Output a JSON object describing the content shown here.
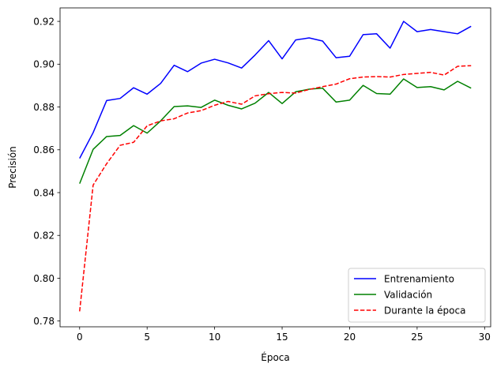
{
  "chart_data": {
    "type": "line",
    "xlabel": "Época",
    "ylabel": "Precisión",
    "xlim": [
      -1.45,
      30.45
    ],
    "ylim": [
      0.7773,
      0.9263
    ],
    "xticks": [
      0,
      5,
      10,
      15,
      20,
      25,
      30
    ],
    "yticks": [
      0.78,
      0.8,
      0.82,
      0.84,
      0.86,
      0.88,
      0.9,
      0.92
    ],
    "ytick_labels": [
      "0.78",
      "0.80",
      "0.82",
      "0.84",
      "0.86",
      "0.88",
      "0.90",
      "0.92"
    ],
    "grid": false,
    "legend_position": "lower right",
    "x": [
      0,
      1,
      2,
      3,
      4,
      5,
      6,
      7,
      8,
      9,
      10,
      11,
      12,
      13,
      14,
      15,
      16,
      17,
      18,
      19,
      20,
      21,
      22,
      23,
      24,
      25,
      26,
      27,
      28,
      29
    ],
    "series": [
      {
        "name": "Entrenamiento",
        "color": "#0000ff",
        "style": "solid",
        "values": [
          0.856,
          0.868,
          0.883,
          0.884,
          0.889,
          0.886,
          0.891,
          0.8995,
          0.8965,
          0.9005,
          0.9023,
          0.9006,
          0.8982,
          0.9043,
          0.911,
          0.9025,
          0.9113,
          0.9123,
          0.9108,
          0.903,
          0.9037,
          0.9138,
          0.9142,
          0.9075,
          0.92,
          0.9152,
          0.9162,
          0.9152,
          0.9142,
          0.9177
        ]
      },
      {
        "name": "Validación",
        "color": "#008000",
        "style": "solid",
        "values": [
          0.8442,
          0.8602,
          0.8662,
          0.8667,
          0.8713,
          0.8678,
          0.8735,
          0.8802,
          0.8805,
          0.8798,
          0.8832,
          0.8808,
          0.8791,
          0.8818,
          0.8868,
          0.8816,
          0.8871,
          0.8883,
          0.8888,
          0.8823,
          0.8832,
          0.8901,
          0.8863,
          0.886,
          0.8931,
          0.8891,
          0.8895,
          0.888,
          0.892,
          0.8888
        ]
      },
      {
        "name": "Durante la época",
        "color": "#ff0000",
        "style": "dashed",
        "values": [
          0.7845,
          0.8435,
          0.8535,
          0.8621,
          0.8635,
          0.8712,
          0.8735,
          0.8745,
          0.8772,
          0.8783,
          0.8808,
          0.8826,
          0.8813,
          0.8852,
          0.8862,
          0.8868,
          0.8865,
          0.8882,
          0.8895,
          0.8907,
          0.8932,
          0.894,
          0.8942,
          0.894,
          0.8952,
          0.8957,
          0.8962,
          0.8949,
          0.899,
          0.8993
        ]
      }
    ]
  }
}
